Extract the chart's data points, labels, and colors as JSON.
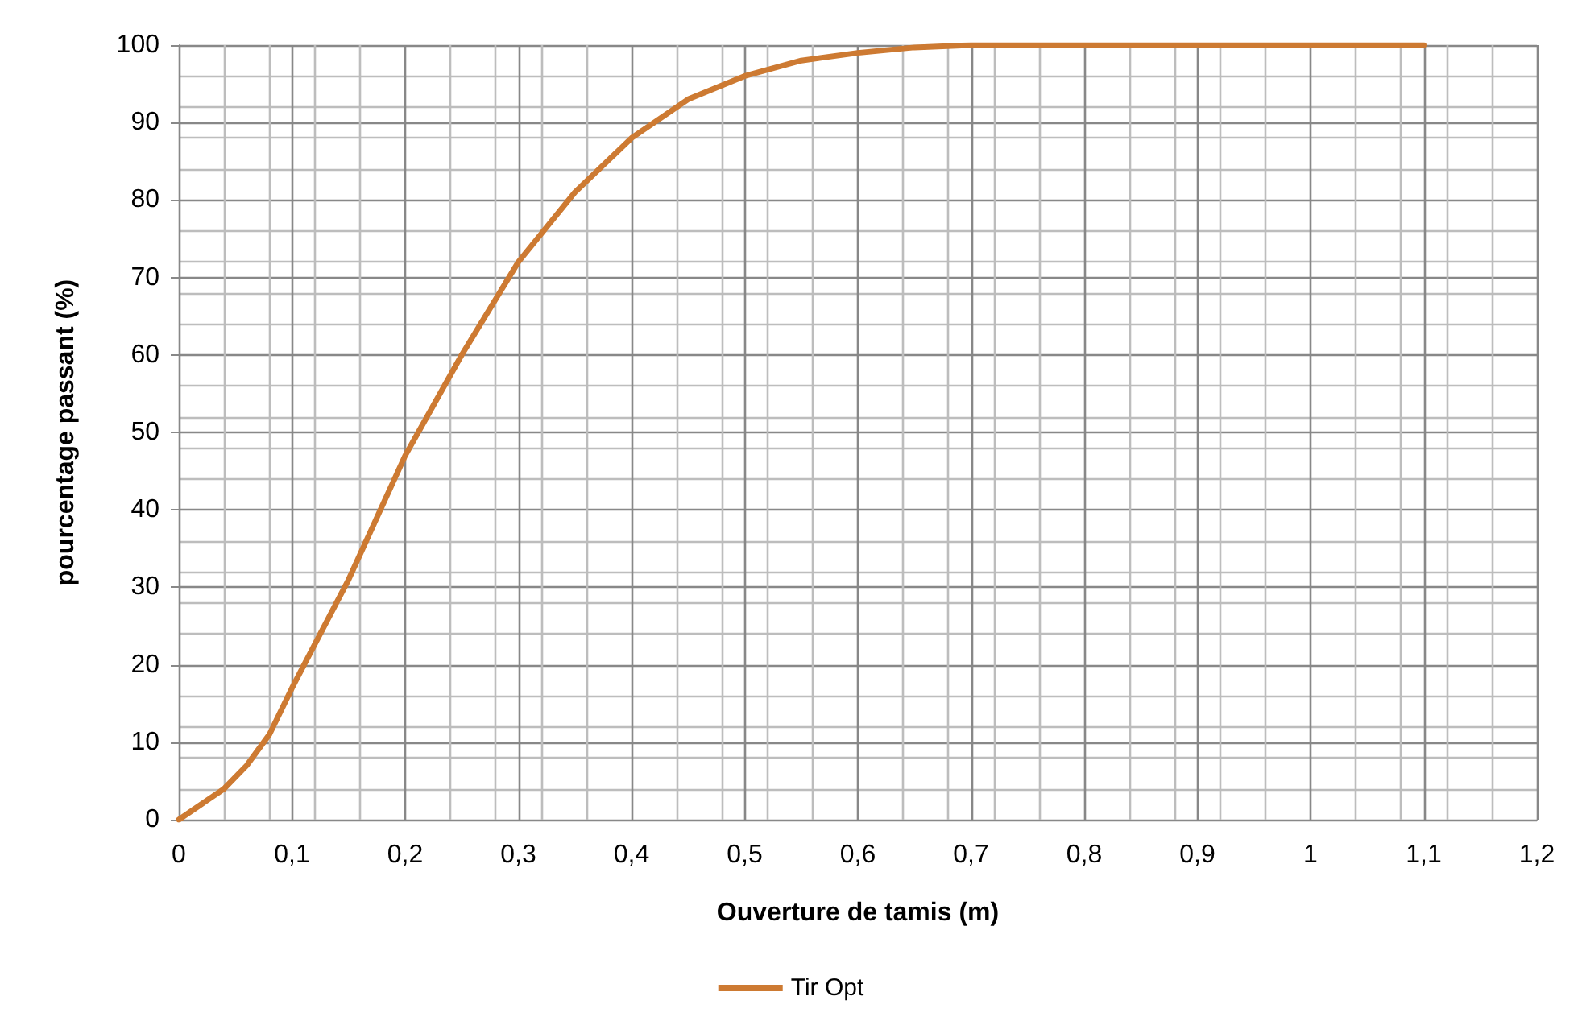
{
  "chart_data": {
    "type": "line",
    "xlabel": "Ouverture de tamis (m)",
    "ylabel": "pourcentage passant (%)",
    "x": [
      0,
      0.02,
      0.04,
      0.06,
      0.08,
      0.1,
      0.15,
      0.2,
      0.25,
      0.3,
      0.35,
      0.4,
      0.45,
      0.5,
      0.55,
      0.6,
      0.65,
      0.7,
      0.8,
      0.9,
      1,
      1.1
    ],
    "series": [
      {
        "name": "Tir Opt",
        "color": "#cd7a32",
        "values": [
          0,
          2,
          4,
          7,
          11,
          17,
          31,
          47,
          60,
          72,
          81,
          88,
          93,
          96,
          98,
          99,
          99.7,
          100,
          100,
          100,
          100,
          100
        ]
      }
    ],
    "xlim": [
      0,
      1.2
    ],
    "xticks": [
      0,
      {
        "value": 0.1,
        "label": "0,1"
      },
      {
        "value": 0.2,
        "label": "0,2"
      },
      {
        "value": 0.3,
        "label": "0,3"
      },
      {
        "value": 0.4,
        "label": "0,4"
      },
      {
        "value": 0.5,
        "label": "0,5"
      },
      {
        "value": 0.6,
        "label": "0,6"
      },
      {
        "value": 0.7,
        "label": "0,7"
      },
      {
        "value": 0.8,
        "label": "0,8"
      },
      {
        "value": 0.9,
        "label": "0,9"
      },
      1,
      {
        "value": 1.1,
        "label": "1,1"
      },
      {
        "value": 1.2,
        "label": "1,2"
      }
    ],
    "ylim": [
      0,
      100
    ],
    "yticks": [
      0,
      10,
      20,
      30,
      40,
      50,
      60,
      70,
      80,
      90,
      100
    ],
    "grid": true,
    "legend": "bottom",
    "marker": "none",
    "line_style": "solid"
  }
}
